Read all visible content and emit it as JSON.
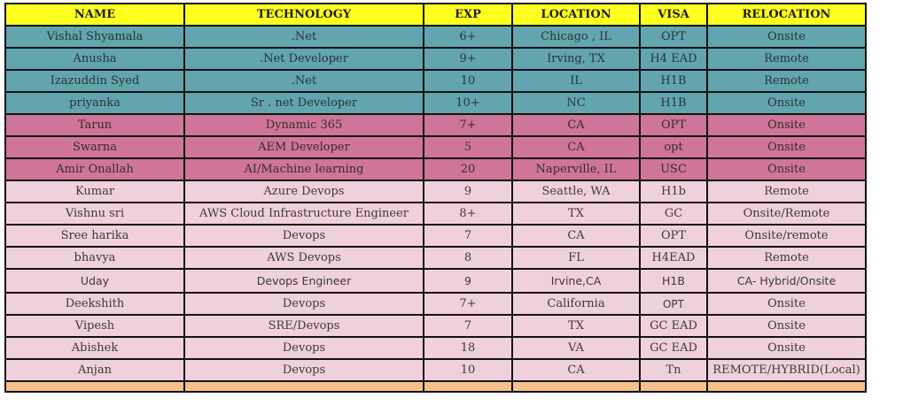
{
  "table": {
    "headers": [
      "NAME",
      "TECHNOLOGY",
      "EXP",
      "LOCATION",
      "VISA",
      "RELOCATION"
    ],
    "colors": {
      "header": "#ffff1f",
      "teal": "#62a5ae",
      "rose": "#cf7599",
      "pale": "#f0d0dc",
      "orange": "#f7c08a",
      "border": "#111111"
    },
    "rows": [
      {
        "name": "Vishal Shyamala",
        "technology": ".Net",
        "exp": "6+",
        "location": "Chicago , IL",
        "visa": "OPT",
        "relocation": "Onsite",
        "group": "teal"
      },
      {
        "name": "Anusha",
        "technology": ".Net Developer",
        "exp": "9+",
        "location": "Irving, TX",
        "visa": "H4 EAD",
        "relocation": "Remote",
        "group": "teal"
      },
      {
        "name": "Izazuddin Syed",
        "technology": ".Net",
        "exp": "10",
        "location": "IL",
        "visa": "H1B",
        "relocation": "Remote",
        "group": "teal"
      },
      {
        "name": "priyanka",
        "technology": "Sr . net Developer",
        "exp": "10+",
        "location": "NC",
        "visa": "H1B",
        "relocation": "Onsite",
        "group": "teal"
      },
      {
        "name": "Tarun",
        "technology": "Dynamic 365",
        "exp": "7+",
        "location": "CA",
        "visa": "OPT",
        "relocation": "Onsite",
        "group": "rose"
      },
      {
        "name": "Swarna",
        "technology": "AEM Developer",
        "exp": "5",
        "location": "CA",
        "visa": "opt",
        "relocation": "Onsite",
        "group": "rose"
      },
      {
        "name": "Amir Onallah",
        "technology": "AI/Machine learning",
        "exp": "20",
        "location": "Naperville, IL",
        "visa": "USC",
        "relocation": "Onsite",
        "group": "rose"
      },
      {
        "name": "Kumar",
        "technology": "Azure Devops",
        "exp": "9",
        "location": "Seattle, WA",
        "visa": "H1b",
        "relocation": "Remote",
        "group": "pale"
      },
      {
        "name": "Vishnu sri",
        "technology": "AWS Cloud Infrastructure Engineer",
        "exp": "8+",
        "location": "TX",
        "visa": "GC",
        "relocation": "Onsite/Remote",
        "group": "pale"
      },
      {
        "name": "Sree harika",
        "technology": "Devops",
        "exp": "7",
        "location": "CA",
        "visa": "OPT",
        "relocation": "Onsite/remote",
        "group": "pale"
      },
      {
        "name": "bhavya",
        "technology": "AWS Devops",
        "exp": "8",
        "location": "FL",
        "visa": "H4EAD",
        "relocation": "Remote",
        "group": "pale"
      },
      {
        "name": "Uday",
        "technology": "Devops Engineer",
        "exp": "9",
        "location": "Irvine,CA",
        "visa": "H1B",
        "relocation": "CA- Hybrid/Onsite",
        "group": "pale"
      },
      {
        "name": "Deekshith",
        "technology": "Devops",
        "exp": "7+",
        "location": "California",
        "visa": "OPT",
        "relocation": "Onsite",
        "group": "pale"
      },
      {
        "name": "Vipesh",
        "technology": "SRE/Devops",
        "exp": "7",
        "location": "TX",
        "visa": "GC EAD",
        "relocation": "Onsite",
        "group": "pale"
      },
      {
        "name": "Abishek",
        "technology": "Devops",
        "exp": "18",
        "location": "VA",
        "visa": "GC EAD",
        "relocation": "Onsite",
        "group": "pale"
      },
      {
        "name": "Anjan",
        "technology": "Devops",
        "exp": "10",
        "location": "CA",
        "visa": "Tn",
        "relocation": "REMOTE/HYBRID(Local)",
        "group": "pale"
      }
    ]
  }
}
